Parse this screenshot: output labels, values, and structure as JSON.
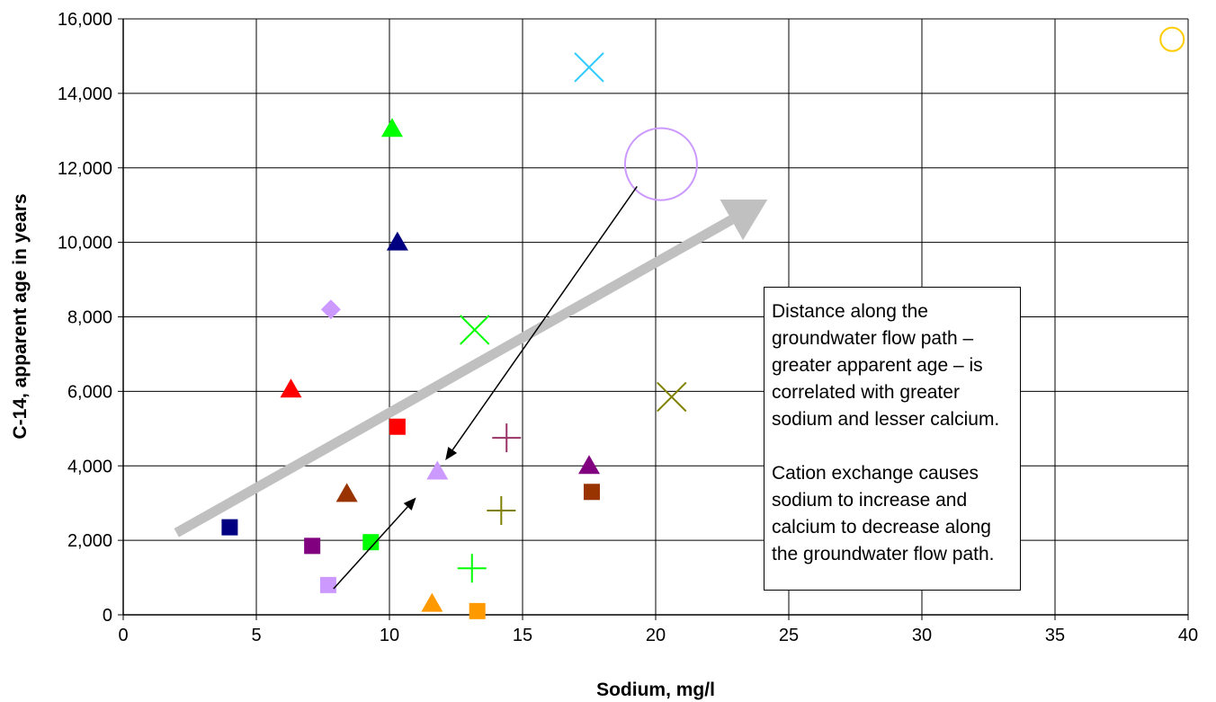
{
  "chart_data": {
    "type": "scatter",
    "title": "",
    "xlabel": "Sodium, mg/l",
    "ylabel": "C-14, apparent age in years",
    "xlim": [
      0,
      40
    ],
    "ylim": [
      0,
      16000
    ],
    "x_ticks": [
      0,
      5,
      10,
      15,
      20,
      25,
      30,
      35,
      40
    ],
    "y_ticks": [
      0,
      2000,
      4000,
      6000,
      8000,
      10000,
      12000,
      14000,
      16000
    ],
    "x_tick_labels": [
      "0",
      "5",
      "10",
      "15",
      "20",
      "25",
      "30",
      "35",
      "40"
    ],
    "y_tick_labels": [
      "0",
      "2,000",
      "4,000",
      "6,000",
      "8,000",
      "10,000",
      "12,000",
      "14,000",
      "16,000"
    ],
    "grid": true,
    "points": [
      {
        "x": 4.0,
        "y": 2350,
        "marker": "square",
        "color": "#000080"
      },
      {
        "x": 7.1,
        "y": 1850,
        "marker": "square",
        "color": "#800080"
      },
      {
        "x": 7.7,
        "y": 800,
        "marker": "square",
        "color": "#CC99FF"
      },
      {
        "x": 9.3,
        "y": 1950,
        "marker": "square",
        "color": "#00FF00"
      },
      {
        "x": 10.3,
        "y": 5050,
        "marker": "square",
        "color": "#FF0000"
      },
      {
        "x": 13.3,
        "y": 100,
        "marker": "square",
        "color": "#FF9900"
      },
      {
        "x": 17.6,
        "y": 3300,
        "marker": "square",
        "color": "#993300"
      },
      {
        "x": 6.3,
        "y": 6050,
        "marker": "triangle",
        "color": "#FF0000"
      },
      {
        "x": 8.4,
        "y": 3250,
        "marker": "triangle",
        "color": "#993300"
      },
      {
        "x": 10.1,
        "y": 13050,
        "marker": "triangle",
        "color": "#00FF00"
      },
      {
        "x": 10.3,
        "y": 10000,
        "marker": "triangle",
        "color": "#000080"
      },
      {
        "x": 11.6,
        "y": 300,
        "marker": "triangle",
        "color": "#FF9900"
      },
      {
        "x": 11.8,
        "y": 3850,
        "marker": "triangle",
        "color": "#CC99FF"
      },
      {
        "x": 17.5,
        "y": 4000,
        "marker": "triangle",
        "color": "#800080"
      },
      {
        "x": 7.8,
        "y": 8200,
        "marker": "diamond",
        "color": "#CC99FF"
      },
      {
        "x": 13.2,
        "y": 7650,
        "marker": "x",
        "color": "#00FF00"
      },
      {
        "x": 17.5,
        "y": 14700,
        "marker": "x",
        "color": "#33CCFF"
      },
      {
        "x": 20.6,
        "y": 5850,
        "marker": "x",
        "color": "#808000"
      },
      {
        "x": 13.1,
        "y": 1250,
        "marker": "plus",
        "color": "#00FF00"
      },
      {
        "x": 14.2,
        "y": 2800,
        "marker": "plus",
        "color": "#808000"
      },
      {
        "x": 14.4,
        "y": 4750,
        "marker": "plus",
        "color": "#993366"
      },
      {
        "x": 20.2,
        "y": 12100,
        "marker": "circle-large",
        "color": "#CC99FF"
      },
      {
        "x": 39.4,
        "y": 15450,
        "marker": "circle",
        "color": "#FFCC00"
      }
    ],
    "trend_arrow": {
      "from": [
        2.0,
        2200
      ],
      "to": [
        24.2,
        11150
      ],
      "color": "#C0C0C0"
    },
    "arrows": [
      {
        "from": [
          7.9,
          700
        ],
        "to": [
          11.0,
          3150
        ],
        "color": "#000000"
      },
      {
        "from": [
          19.3,
          11500
        ],
        "to": [
          12.1,
          4150
        ],
        "color": "#000000"
      }
    ],
    "annotation": {
      "paragraphs": [
        "Distance along the groundwater flow path – greater apparent age – is correlated with greater sodium and lesser calcium.",
        "Cation exchange causes sodium to increase and calcium to decrease along the groundwater flow path."
      ]
    }
  }
}
